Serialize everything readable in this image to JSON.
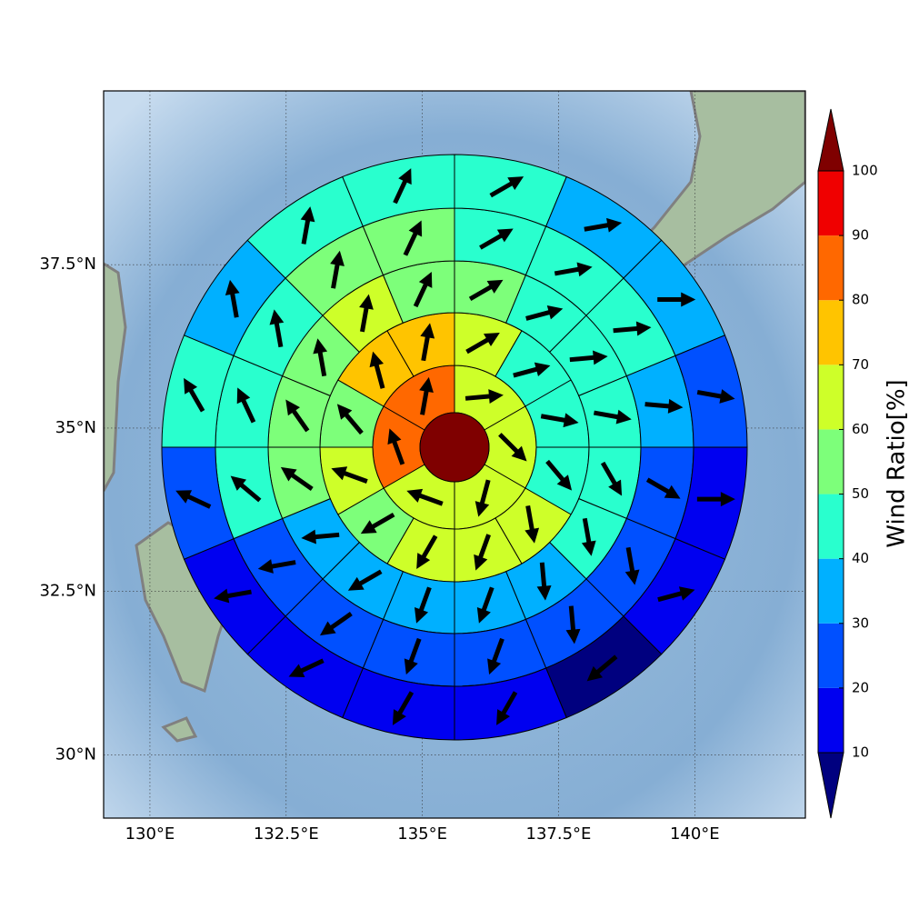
{
  "chart_data": {
    "type": "polar_sectors",
    "xlim": [
      129.15,
      142.03
    ],
    "ylim": [
      29.03,
      40.16
    ],
    "xticks": [
      {
        "value": 130,
        "label": "130°E"
      },
      {
        "value": 132.5,
        "label": "132.5°E"
      },
      {
        "value": 135,
        "label": "135°E"
      },
      {
        "value": 137.5,
        "label": "137.5°E"
      },
      {
        "value": 140,
        "label": "140°E"
      }
    ],
    "yticks": [
      {
        "value": 30,
        "label": "30°N"
      },
      {
        "value": 32.5,
        "label": "32.5°N"
      },
      {
        "value": 35,
        "label": "35°N"
      },
      {
        "value": 37.5,
        "label": "37.5°N"
      }
    ],
    "grid": true,
    "center": {
      "value": 105
    },
    "rings": [
      {
        "values": [
          65,
          65,
          65,
          65,
          85,
          85
        ],
        "directions": [
          85,
          135,
          195,
          290,
          340,
          10
        ]
      },
      {
        "values": [
          65,
          45,
          45,
          45,
          65,
          65,
          65,
          55,
          65,
          55,
          75,
          75
        ],
        "directions": [
          60,
          75,
          100,
          140,
          170,
          200,
          210,
          240,
          290,
          320,
          345,
          10
        ]
      },
      {
        "values": [
          55,
          45,
          45,
          45,
          45,
          45,
          35,
          35,
          35,
          35,
          35,
          55,
          55,
          55,
          65,
          55
        ],
        "directions": [
          60,
          75,
          85,
          100,
          150,
          170,
          175,
          200,
          200,
          240,
          265,
          305,
          325,
          350,
          10,
          25
        ]
      },
      {
        "values": [
          45,
          45,
          45,
          35,
          25,
          25,
          25,
          25,
          25,
          25,
          25,
          45,
          45,
          45,
          55,
          55
        ],
        "directions": [
          60,
          80,
          85,
          95,
          120,
          170,
          175,
          200,
          200,
          235,
          260,
          310,
          335,
          350,
          10,
          25
        ]
      },
      {
        "values": [
          45,
          35,
          35,
          25,
          15,
          15,
          5,
          15,
          15,
          15,
          15,
          25,
          45,
          35,
          45,
          45
        ],
        "directions": [
          60,
          80,
          90,
          100,
          90,
          75,
          230,
          210,
          210,
          245,
          260,
          295,
          330,
          350,
          10,
          25
        ]
      }
    ],
    "colorbar": {
      "label": "Wind Ratio[%]",
      "ticks": [
        10,
        20,
        30,
        40,
        50,
        60,
        70,
        80,
        90,
        100
      ],
      "colors": [
        "#0000f0",
        "#0050ff",
        "#00b0ff",
        "#29ffce",
        "#7dff7a",
        "#ceff29",
        "#ffc400",
        "#ff6800",
        "#f00000"
      ],
      "under_color": "#00007f",
      "over_color": "#7f0000"
    }
  }
}
